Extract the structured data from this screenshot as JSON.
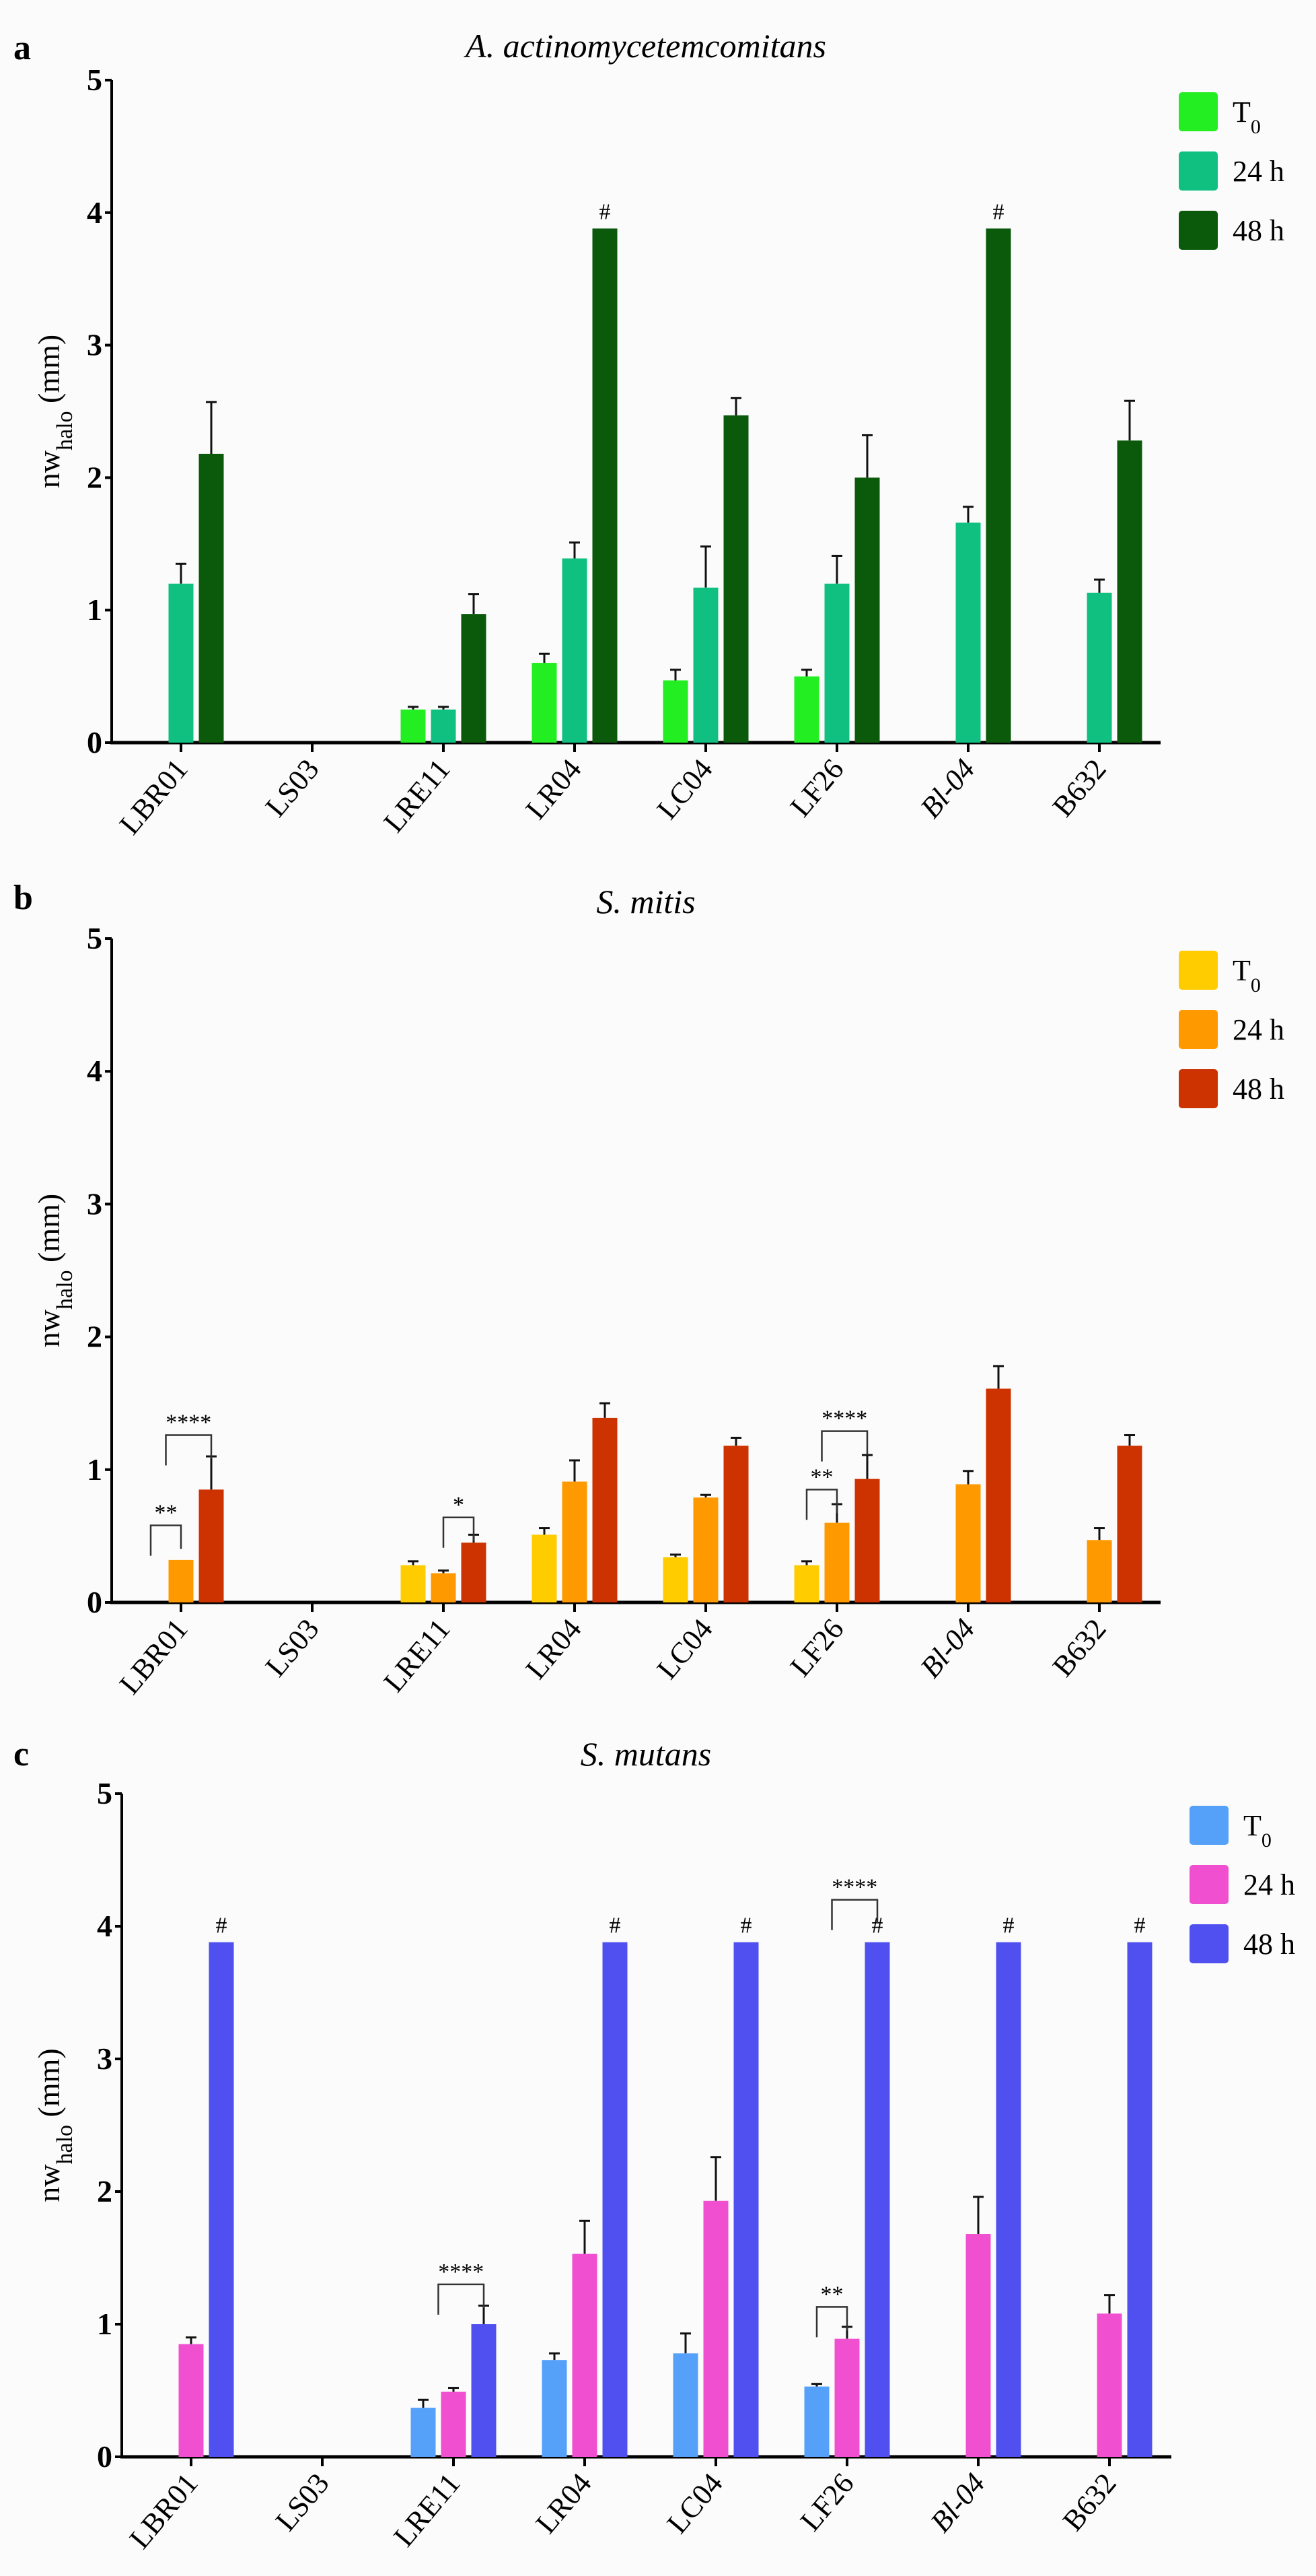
{
  "chart_data": [
    {
      "type": "bar",
      "panel_label": "a",
      "title": "A. actinomycetemcomitans",
      "ylabel": "nw",
      "ylabel_sub": "halo",
      "ylabel_unit": " (mm)",
      "ylim": [
        0,
        5
      ],
      "yticks": [
        "0",
        "1",
        "2",
        "3",
        "4",
        "5"
      ],
      "categories": [
        "LBR01",
        "LS03",
        "LRE11",
        "LR04",
        "LC04",
        "LF26",
        "Bl-04",
        "B632"
      ],
      "legend_position": "top-right",
      "series": [
        {
          "name": "T",
          "name_sub": "0",
          "color": "#22ee22",
          "values": [
            null,
            null,
            0.25,
            0.6,
            0.47,
            0.5,
            null,
            null
          ],
          "error": [
            null,
            null,
            0.27,
            0.67,
            0.55,
            0.55,
            null,
            null
          ]
        },
        {
          "name": "24 h",
          "color": "#10c080",
          "values": [
            1.2,
            null,
            0.25,
            1.39,
            1.17,
            1.2,
            1.66,
            1.13
          ],
          "error": [
            1.35,
            null,
            0.27,
            1.51,
            1.48,
            1.41,
            1.78,
            1.23
          ]
        },
        {
          "name": "48 h",
          "color": "#0b5a0b",
          "values": [
            2.18,
            null,
            0.97,
            3.88,
            2.47,
            2.0,
            3.88,
            2.28
          ],
          "error": [
            2.57,
            null,
            1.12,
            null,
            2.6,
            2.32,
            null,
            2.58
          ]
        }
      ],
      "marks": [
        {
          "cat": 3,
          "series": 2,
          "label": "#"
        },
        {
          "cat": 6,
          "series": 2,
          "label": "#"
        }
      ],
      "brackets": []
    },
    {
      "type": "bar",
      "panel_label": "b",
      "title": "S. mitis",
      "ylabel": "nw",
      "ylabel_sub": "halo",
      "ylabel_unit": " (mm)",
      "ylim": [
        0,
        5
      ],
      "yticks": [
        "0",
        "1",
        "2",
        "3",
        "4",
        "5"
      ],
      "categories": [
        "LBR01",
        "LS03",
        "LRE11",
        "LR04",
        "LC04",
        "LF26",
        "Bl-04",
        "B632"
      ],
      "legend_position": "top-right",
      "series": [
        {
          "name": "T",
          "name_sub": "0",
          "color": "#ffcc00",
          "values": [
            null,
            null,
            0.28,
            0.51,
            0.34,
            0.28,
            null,
            null
          ],
          "error": [
            null,
            null,
            0.31,
            0.56,
            0.36,
            0.31,
            null,
            null
          ]
        },
        {
          "name": "24 h",
          "color": "#ff9900",
          "values": [
            0.32,
            null,
            0.22,
            0.91,
            0.79,
            0.6,
            0.89,
            0.47
          ],
          "error": [
            null,
            null,
            0.24,
            1.07,
            0.81,
            0.74,
            0.99,
            0.56
          ]
        },
        {
          "name": "48 h",
          "color": "#cc3300",
          "values": [
            0.85,
            null,
            0.45,
            1.39,
            1.18,
            0.93,
            1.61,
            1.18
          ],
          "error": [
            1.1,
            null,
            0.51,
            1.5,
            1.24,
            1.11,
            1.78,
            1.26
          ]
        }
      ],
      "marks": [],
      "brackets": [
        {
          "cat": 0,
          "from": 0,
          "to": 1,
          "y": 0.58,
          "label": "**"
        },
        {
          "cat": 0,
          "from": 0.5,
          "to": 2,
          "y": 1.26,
          "label": "****"
        },
        {
          "cat": 2,
          "from": 1,
          "to": 2,
          "y": 0.64,
          "label": "*"
        },
        {
          "cat": 5,
          "from": 0,
          "to": 1,
          "y": 0.85,
          "label": "**"
        },
        {
          "cat": 5,
          "from": 0.5,
          "to": 2,
          "y": 1.29,
          "label": "****"
        }
      ]
    },
    {
      "type": "bar",
      "panel_label": "c",
      "title": "S. mutans",
      "ylabel": "nw",
      "ylabel_sub": "halo",
      "ylabel_unit": " (mm)",
      "ylim": [
        0,
        5
      ],
      "yticks": [
        "0",
        "1",
        "2",
        "3",
        "4",
        "5"
      ],
      "categories": [
        "LBR01",
        "LS03",
        "LRE11",
        "LR04",
        "LC04",
        "LF26",
        "Bl-04",
        "B632"
      ],
      "legend_position": "top-right",
      "series": [
        {
          "name": "T",
          "name_sub": "0",
          "color": "#55a0f8",
          "values": [
            null,
            null,
            0.37,
            0.73,
            0.78,
            0.53,
            null,
            null
          ],
          "error": [
            null,
            null,
            0.43,
            0.78,
            0.93,
            0.55,
            null,
            null
          ]
        },
        {
          "name": "24 h",
          "color": "#f050d0",
          "values": [
            0.85,
            null,
            0.49,
            1.53,
            1.93,
            0.89,
            1.68,
            1.08
          ],
          "error": [
            0.9,
            null,
            0.52,
            1.78,
            2.26,
            0.98,
            1.96,
            1.22
          ]
        },
        {
          "name": "48 h",
          "color": "#5050f0",
          "values": [
            3.88,
            null,
            1.0,
            3.88,
            3.88,
            3.88,
            3.88,
            3.88
          ],
          "error": [
            null,
            null,
            1.14,
            null,
            null,
            null,
            null,
            null
          ]
        }
      ],
      "marks": [
        {
          "cat": 0,
          "series": 2,
          "label": "#"
        },
        {
          "cat": 3,
          "series": 2,
          "label": "#"
        },
        {
          "cat": 4,
          "series": 2,
          "label": "#"
        },
        {
          "cat": 5,
          "series": 2,
          "label": "#"
        },
        {
          "cat": 6,
          "series": 2,
          "label": "#"
        },
        {
          "cat": 7,
          "series": 2,
          "label": "#"
        }
      ],
      "brackets": [
        {
          "cat": 2,
          "from": 0.5,
          "to": 2,
          "y": 1.3,
          "label": "****"
        },
        {
          "cat": 5,
          "from": 0,
          "to": 1,
          "y": 1.13,
          "label": "**"
        },
        {
          "cat": 5,
          "from": 0.5,
          "to": 2,
          "y": 4.2,
          "label": "****"
        }
      ]
    }
  ]
}
